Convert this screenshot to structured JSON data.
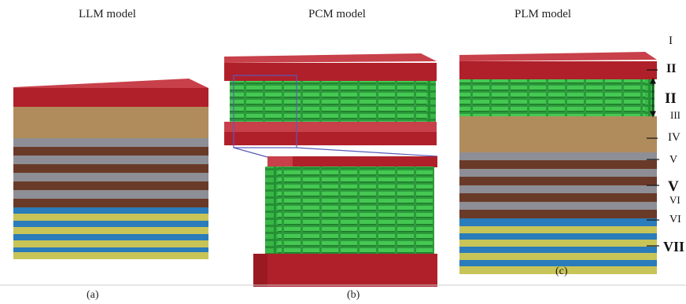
{
  "panels": {
    "llm": {
      "title": "LLM model",
      "label": "(a)"
    },
    "pcm": {
      "title": "PCM model",
      "label": "(b)"
    },
    "plm": {
      "title": "PLM model",
      "label": "(c)"
    }
  },
  "layer_labels": [
    "I",
    "II",
    "II",
    "III",
    "IV",
    "V",
    "V",
    "VI",
    "VI",
    "VII"
  ],
  "colors": {
    "red_top": "#c8404a",
    "red_front": "#b0202a",
    "tan": "#b08c5c",
    "dark_brown": "#6a3a28",
    "gray": "#8e8e96",
    "blue": "#2a7cba",
    "yellow": "#c8c458",
    "green": "#3cc04a",
    "green_dark": "#1e8a2c",
    "zoom_line": "#5a5ab8",
    "background": "#ffffff"
  }
}
